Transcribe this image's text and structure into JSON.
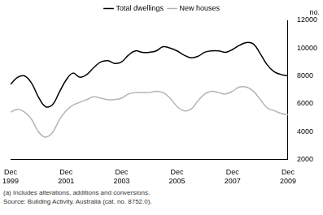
{
  "chart_data": {
    "type": "line",
    "y_label": "no.",
    "footnote": "(a) Includes alterations, additions and conversions.",
    "source": "Source: Building Activity, Australia (cat. no. 8752.0).",
    "categories": [
      "Dec 1999",
      null,
      null,
      null,
      null,
      null,
      null,
      null,
      "Dec 2001",
      null,
      null,
      null,
      null,
      null,
      null,
      null,
      "Dec 2003",
      null,
      null,
      null,
      null,
      null,
      null,
      null,
      "Dec 2005",
      null,
      null,
      null,
      null,
      null,
      null,
      null,
      "Dec 2007",
      null,
      null,
      null,
      null,
      null,
      null,
      null,
      "Dec 2009"
    ],
    "series": [
      {
        "name": "Total dwellings",
        "color": "#000000",
        "values": [
          7400,
          7900,
          8000,
          7500,
          6500,
          5800,
          5900,
          6800,
          7700,
          8200,
          7900,
          8100,
          8600,
          9000,
          9100,
          8900,
          9000,
          9500,
          9800,
          9700,
          9700,
          9800,
          10100,
          10000,
          9800,
          9500,
          9300,
          9400,
          9700,
          9800,
          9800,
          9700,
          9900,
          10200,
          10400,
          10300,
          9600,
          8800,
          8300,
          8100,
          8000
        ]
      },
      {
        "name": "New houses",
        "color": "#b4b4b4",
        "values": [
          5400,
          5600,
          5400,
          4900,
          4000,
          3600,
          3900,
          4800,
          5500,
          5900,
          6100,
          6300,
          6500,
          6400,
          6300,
          6300,
          6400,
          6700,
          6800,
          6800,
          6800,
          6900,
          6800,
          6400,
          5800,
          5500,
          5600,
          6200,
          6700,
          6900,
          6800,
          6700,
          6900,
          7200,
          7200,
          6900,
          6300,
          5700,
          5500,
          5300,
          5200
        ]
      }
    ],
    "ylim": [
      2000,
      12000
    ],
    "yticks": [
      2000,
      4000,
      6000,
      8000,
      10000,
      12000
    ],
    "grid": false,
    "legend": "top"
  }
}
